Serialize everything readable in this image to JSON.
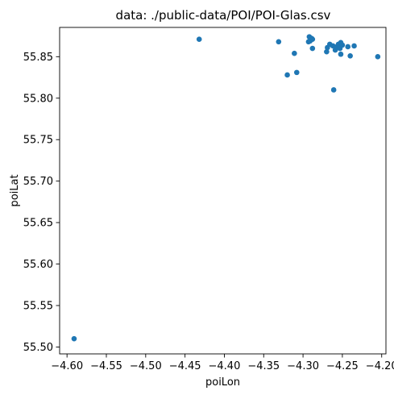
{
  "chart_data": {
    "type": "scatter",
    "title": "data: ./public-data/POI/POI-Glas.csv",
    "xlabel": "poiLon",
    "ylabel": "poiLat",
    "xlim": [
      -4.6094,
      -4.1946
    ],
    "ylim": [
      55.4917,
      55.8853
    ],
    "xticks": [
      -4.6,
      -4.55,
      -4.5,
      -4.45,
      -4.4,
      -4.35,
      -4.3,
      -4.25,
      -4.2
    ],
    "xtick_labels": [
      "−4.60",
      "−4.55",
      "−4.50",
      "−4.45",
      "−4.40",
      "−4.35",
      "−4.30",
      "−4.25",
      "−4.20"
    ],
    "yticks": [
      55.5,
      55.55,
      55.6,
      55.65,
      55.7,
      55.75,
      55.8,
      55.85
    ],
    "ytick_labels": [
      "55.50",
      "55.55",
      "55.60",
      "55.65",
      "55.70",
      "55.75",
      "55.80",
      "55.85"
    ],
    "grid": false,
    "marker_color": "#1f77b4",
    "points": [
      {
        "x": -4.591,
        "y": 55.51
      },
      {
        "x": -4.432,
        "y": 55.871
      },
      {
        "x": -4.331,
        "y": 55.868
      },
      {
        "x": -4.32,
        "y": 55.828
      },
      {
        "x": -4.311,
        "y": 55.854
      },
      {
        "x": -4.308,
        "y": 55.831
      },
      {
        "x": -4.293,
        "y": 55.868
      },
      {
        "x": -4.292,
        "y": 55.874
      },
      {
        "x": -4.291,
        "y": 55.869
      },
      {
        "x": -4.289,
        "y": 55.872
      },
      {
        "x": -4.288,
        "y": 55.871
      },
      {
        "x": -4.288,
        "y": 55.86
      },
      {
        "x": -4.27,
        "y": 55.856
      },
      {
        "x": -4.269,
        "y": 55.861
      },
      {
        "x": -4.266,
        "y": 55.865
      },
      {
        "x": -4.262,
        "y": 55.863
      },
      {
        "x": -4.261,
        "y": 55.81
      },
      {
        "x": -4.259,
        "y": 55.858
      },
      {
        "x": -4.257,
        "y": 55.862
      },
      {
        "x": -4.255,
        "y": 55.865
      },
      {
        "x": -4.253,
        "y": 55.86
      },
      {
        "x": -4.252,
        "y": 55.867
      },
      {
        "x": -4.252,
        "y": 55.853
      },
      {
        "x": -4.25,
        "y": 55.864
      },
      {
        "x": -4.243,
        "y": 55.862
      },
      {
        "x": -4.24,
        "y": 55.851
      },
      {
        "x": -4.235,
        "y": 55.863
      },
      {
        "x": -4.205,
        "y": 55.85
      }
    ]
  }
}
